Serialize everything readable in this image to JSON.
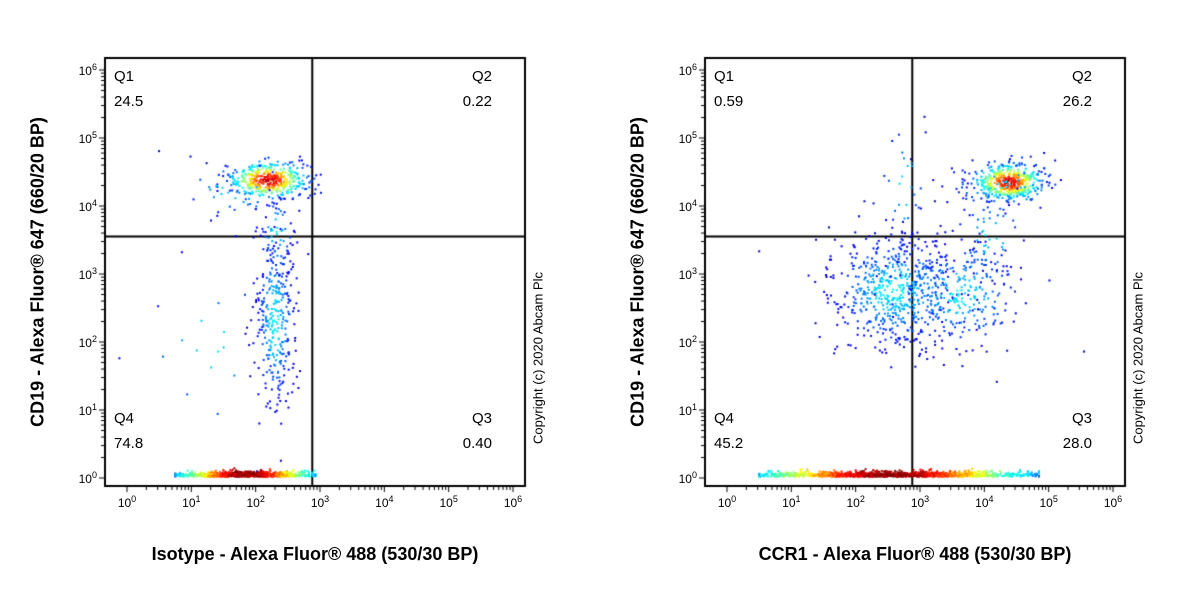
{
  "copyright": "Copyright (c) 2020 Abcam Plc",
  "axis": {
    "tick_base": "10",
    "tick_exponents": [
      0,
      1,
      2,
      3,
      4,
      5,
      6
    ]
  },
  "chart_data": [
    {
      "type": "scatter",
      "title": "",
      "xlabel": "Isotype - Alexa Fluor® 488 (530/30 BP)",
      "ylabel": "CD19 - Alexa Fluor® 647 (660/20 BP)",
      "x_scale": "log",
      "y_scale": "log",
      "xlim": [
        1,
        1000000
      ],
      "ylim": [
        1,
        1000000
      ],
      "grid": false,
      "legend": "none",
      "gates": {
        "x_log10": 2.88,
        "y_log10": 3.55
      },
      "quadrants": [
        {
          "name": "Q1",
          "value": 24.5,
          "value_text": "24.5",
          "position": "top-left"
        },
        {
          "name": "Q2",
          "value": 0.22,
          "value_text": "0.22",
          "position": "top-right"
        },
        {
          "name": "Q3",
          "value": 0.4,
          "value_text": "0.40",
          "position": "bottom-right"
        },
        {
          "name": "Q4",
          "value": 74.8,
          "value_text": "74.8",
          "position": "bottom-left"
        }
      ],
      "populations": [
        {
          "name": "cd19-positive-cluster",
          "style": "hot",
          "cx": 2.2,
          "cy": 4.38,
          "sx": 0.32,
          "sy": 0.14,
          "n": 430,
          "seed": 11
        },
        {
          "name": "cluster-halo",
          "style": "cold",
          "cx": 1.7,
          "cy": 4.28,
          "sx": 0.5,
          "sy": 0.25,
          "n": 35,
          "seed": 12
        },
        {
          "name": "mid-smear",
          "style": "cold",
          "cx": 2.3,
          "cy": 2.3,
          "sx": 0.15,
          "sy": 0.65,
          "n": 310,
          "seed": 13
        },
        {
          "name": "smear-upper-tail",
          "style": "cold",
          "cx": 2.33,
          "cy": 3.6,
          "sx": 0.14,
          "sy": 0.3,
          "n": 60,
          "seed": 14
        },
        {
          "name": "sparse-low-left",
          "style": "cold",
          "cx": 1.3,
          "cy": 1.9,
          "sx": 0.6,
          "sy": 0.7,
          "n": 20,
          "seed": 15
        },
        {
          "name": "negative-baseline",
          "style": "baseline",
          "x0": 0.75,
          "x1": 2.93,
          "xc": 1.85,
          "y": 0.02,
          "n": 900,
          "seed": 16
        }
      ]
    },
    {
      "type": "scatter",
      "title": "",
      "xlabel": "CCR1 - Alexa Fluor® 488 (530/30 BP)",
      "ylabel": "CD19 - Alexa Fluor® 647 (660/20 BP)",
      "x_scale": "log",
      "y_scale": "log",
      "xlim": [
        1,
        1000000
      ],
      "ylim": [
        1,
        1000000
      ],
      "grid": false,
      "legend": "none",
      "gates": {
        "x_log10": 2.88,
        "y_log10": 3.55
      },
      "quadrants": [
        {
          "name": "Q1",
          "value": 0.59,
          "value_text": "0.59",
          "position": "top-left"
        },
        {
          "name": "Q2",
          "value": 26.2,
          "value_text": "26.2",
          "position": "top-right"
        },
        {
          "name": "Q3",
          "value": 28.0,
          "value_text": "28.0",
          "position": "bottom-right"
        },
        {
          "name": "Q4",
          "value": 45.2,
          "value_text": "45.2",
          "position": "bottom-left"
        }
      ],
      "populations": [
        {
          "name": "cd19-ccr1-double-positive-cluster",
          "style": "hot",
          "cx": 4.38,
          "cy": 4.35,
          "sx": 0.28,
          "sy": 0.14,
          "n": 480,
          "seed": 21
        },
        {
          "name": "cluster-halo",
          "style": "cold",
          "cx": 4.25,
          "cy": 4.3,
          "sx": 0.45,
          "sy": 0.25,
          "n": 45,
          "seed": 22
        },
        {
          "name": "main-cloud",
          "style": "cold",
          "cx": 2.6,
          "cy": 2.75,
          "sx": 0.5,
          "sy": 0.42,
          "n": 600,
          "seed": 23
        },
        {
          "name": "cloud-right-extension",
          "style": "cold",
          "cx": 3.6,
          "cy": 2.7,
          "sx": 0.5,
          "sy": 0.38,
          "n": 260,
          "seed": 24
        },
        {
          "name": "upper-sparse-column",
          "style": "cold",
          "cx": 2.75,
          "cy": 4.3,
          "sx": 0.18,
          "sy": 0.5,
          "n": 26,
          "seed": 25
        },
        {
          "name": "bridge-population",
          "style": "cold",
          "cx": 4.1,
          "cy": 3.55,
          "sx": 0.28,
          "sy": 0.3,
          "n": 55,
          "seed": 26
        },
        {
          "name": "negative-baseline",
          "style": "baseline",
          "x0": 0.5,
          "x1": 4.85,
          "xc": 2.55,
          "y": 0.02,
          "n": 1250,
          "seed": 27
        }
      ]
    }
  ]
}
